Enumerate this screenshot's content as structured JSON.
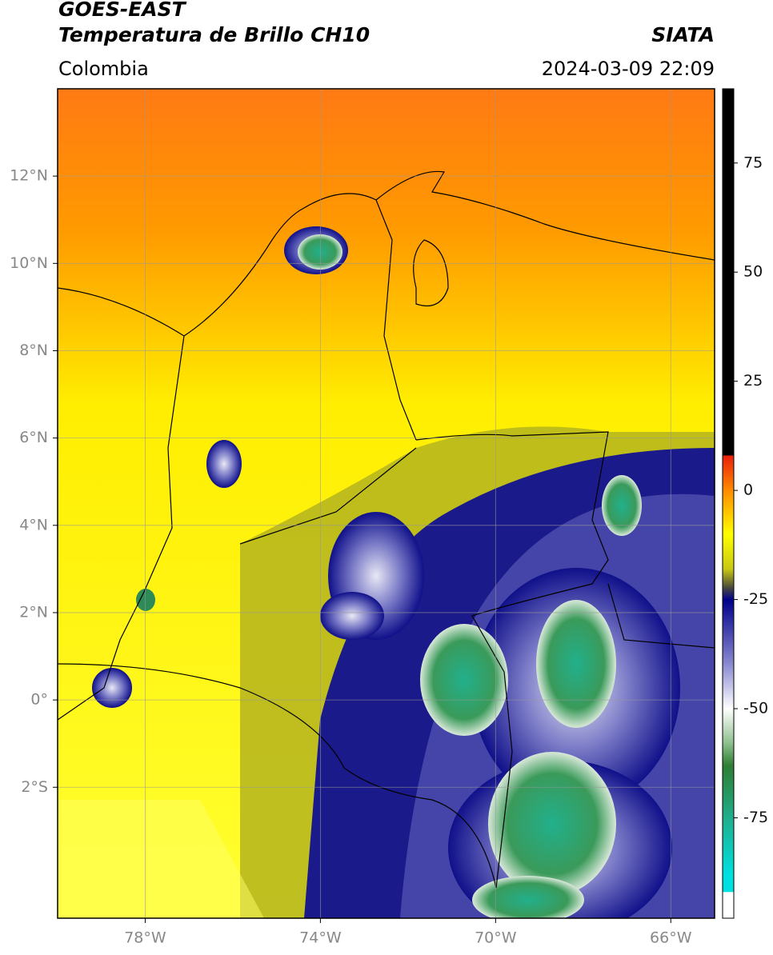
{
  "header": {
    "title": "GOES-EAST",
    "subtitle": "Temperatura de Brillo CH10",
    "region": "Colombia",
    "source": "SIATA",
    "datetime": "2024-03-09 22:09"
  },
  "map": {
    "lonlim": [
      -80,
      -65
    ],
    "latlim": [
      -5,
      14
    ],
    "lonticks": [
      {
        "value": -78,
        "label": "78°W"
      },
      {
        "value": -74,
        "label": "74°W"
      },
      {
        "value": -70,
        "label": "70°W"
      },
      {
        "value": -66,
        "label": "66°W"
      }
    ],
    "latticks": [
      {
        "value": 12,
        "label": "12°N"
      },
      {
        "value": 10,
        "label": "10°N"
      },
      {
        "value": 8,
        "label": "8°N"
      },
      {
        "value": 6,
        "label": "6°N"
      },
      {
        "value": 4,
        "label": "4°N"
      },
      {
        "value": 2,
        "label": "2°N"
      },
      {
        "value": 0,
        "label": "0°"
      },
      {
        "value": -2,
        "label": "2°S"
      }
    ],
    "grid": true
  },
  "colorbar": {
    "lim": [
      -98,
      92
    ],
    "ticks": [
      75,
      50,
      25,
      0,
      -25,
      -50,
      -75
    ],
    "colormap": [
      {
        "value": 92,
        "color": "#000000"
      },
      {
        "value": 8,
        "color": "#000000"
      },
      {
        "value": 8,
        "color": "#e8200c"
      },
      {
        "value": 0,
        "color": "#ff8c00"
      },
      {
        "value": -10,
        "color": "#ffff00"
      },
      {
        "value": -18,
        "color": "#c8c814"
      },
      {
        "value": -22,
        "color": "#505038"
      },
      {
        "value": -25,
        "color": "#00008a"
      },
      {
        "value": -40,
        "color": "#8c8cd2"
      },
      {
        "value": -50,
        "color": "#ffffff"
      },
      {
        "value": -58,
        "color": "#8cbe8c"
      },
      {
        "value": -63,
        "color": "#2e7d32"
      },
      {
        "value": -75,
        "color": "#1fae8c"
      },
      {
        "value": -88,
        "color": "#00e0e0"
      },
      {
        "value": -92,
        "color": "#00e0e0"
      },
      {
        "value": -92,
        "color": "#ffffff"
      },
      {
        "value": -98,
        "color": "#ffffff"
      }
    ]
  }
}
